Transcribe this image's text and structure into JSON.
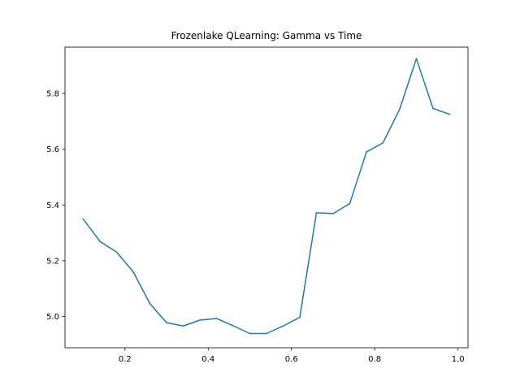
{
  "chart_data": {
    "type": "line",
    "title": "Frozenlake QLearning: Gamma vs Time",
    "xlabel": "",
    "ylabel": "",
    "xlim": [
      0.056,
      1.024
    ],
    "ylim": [
      4.888,
      5.966
    ],
    "grid": false,
    "x_ticks": [
      0.2,
      0.4,
      0.6,
      0.8,
      1.0
    ],
    "x_tick_labels": [
      "0.2",
      "0.4",
      "0.6",
      "0.8",
      "1.0"
    ],
    "y_ticks": [
      5.0,
      5.2,
      5.4,
      5.6,
      5.8
    ],
    "y_tick_labels": [
      "5.0",
      "5.2",
      "5.4",
      "5.6",
      "5.8"
    ],
    "series": [
      {
        "color": "#1f77b4",
        "x": [
          0.1,
          0.14,
          0.18,
          0.22,
          0.26,
          0.3,
          0.34,
          0.38,
          0.42,
          0.46,
          0.5,
          0.54,
          0.58,
          0.62,
          0.66,
          0.7,
          0.74,
          0.78,
          0.82,
          0.86,
          0.9,
          0.94,
          0.98
        ],
        "y": [
          5.349,
          5.269,
          5.231,
          5.16,
          5.046,
          4.978,
          4.966,
          4.987,
          4.993,
          4.967,
          4.939,
          4.939,
          4.966,
          4.997,
          5.372,
          5.369,
          5.405,
          5.59,
          5.623,
          5.744,
          5.925,
          5.746,
          5.725
        ]
      }
    ]
  }
}
